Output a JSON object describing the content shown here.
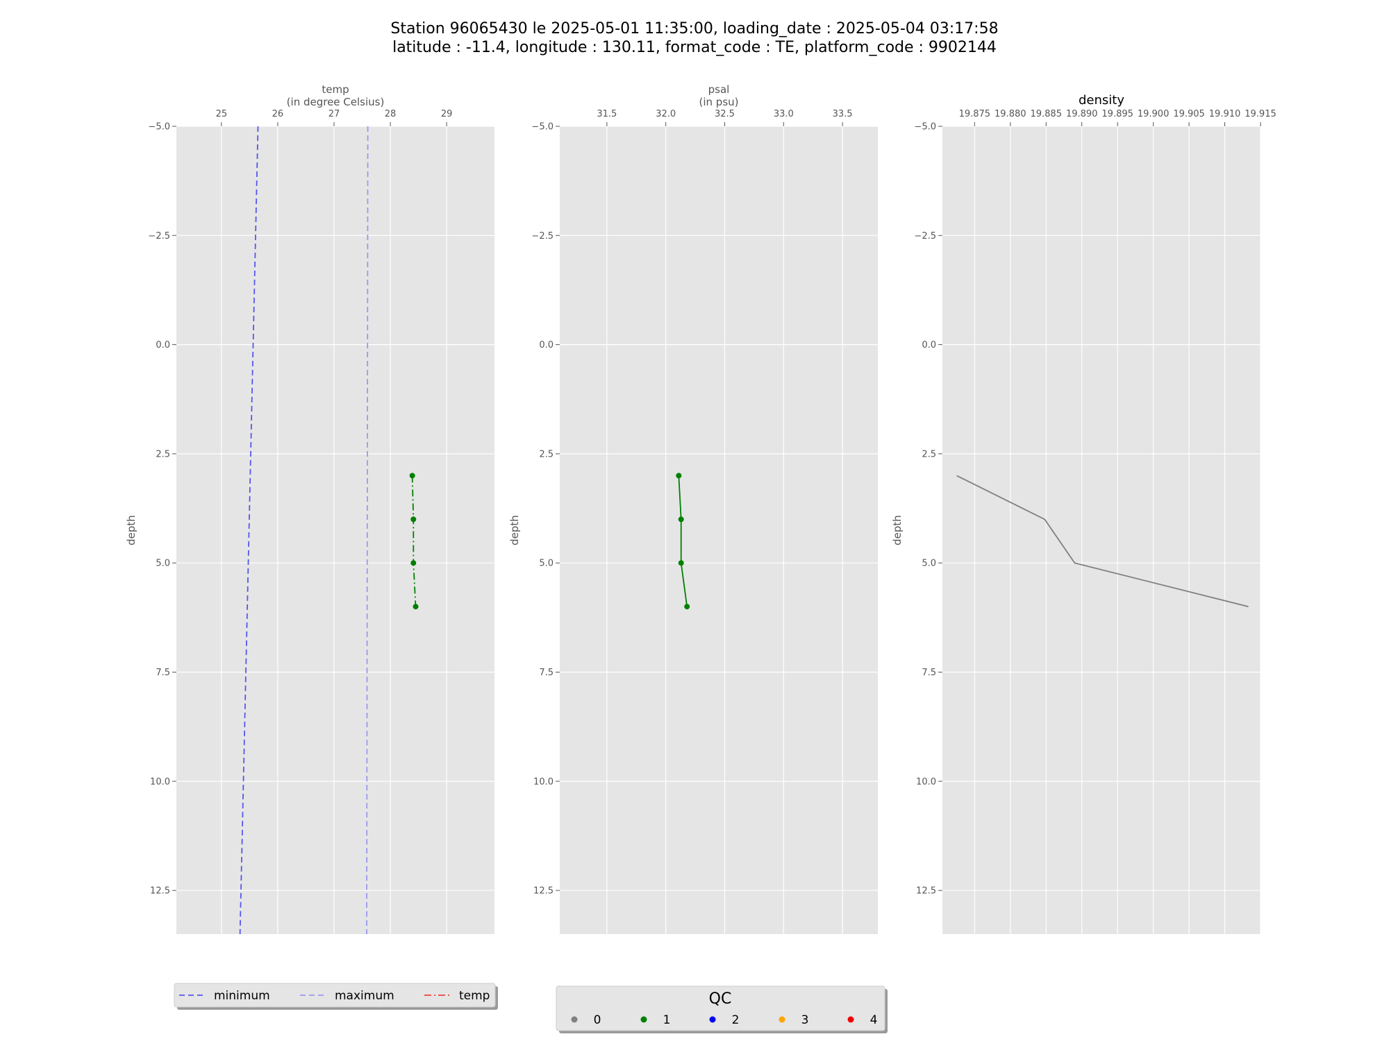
{
  "chart_data": {
    "title_line1": "Station 96065430 le 2025-05-01 11:35:00, loading_date : 2025-05-04 03:17:58",
    "title_line2": "latitude : -11.4, longitude : 130.11, format_code : TE, platform_code : 9902144",
    "type": "line",
    "y_axis": {
      "label": "depth",
      "lim": [
        13.5,
        -5.0
      ],
      "inverted": true,
      "ticks": [
        "−5.0",
        "−2.5",
        "0.0",
        "2.5",
        "5.0",
        "7.5",
        "10.0",
        "12.5"
      ],
      "tick_values": [
        -5.0,
        -2.5,
        0.0,
        2.5,
        5.0,
        7.5,
        10.0,
        12.5
      ]
    },
    "panels": [
      {
        "name": "temp",
        "xlabel_line1": "temp",
        "xlabel_line2": "(in degree Celsius)",
        "xlim": [
          24.2,
          29.85
        ],
        "xticks": [
          25,
          26,
          27,
          28,
          29
        ],
        "xtick_labels": [
          "25",
          "26",
          "27",
          "28",
          "29"
        ],
        "grid": true,
        "series": [
          {
            "name": "minimum",
            "color": "#5555ee",
            "dash": "8,5",
            "x": [
              25.65,
              25.33
            ],
            "y": [
              -5.0,
              13.5
            ]
          },
          {
            "name": "maximum",
            "color": "#9999ee",
            "dash": "8,5",
            "x": [
              27.6,
              27.58
            ],
            "y": [
              -5.0,
              13.5
            ]
          },
          {
            "name": "temp",
            "color": "#008000",
            "dash": "10,4,2,4",
            "markers": true,
            "x": [
              28.39,
              28.41,
              28.41,
              28.45
            ],
            "y": [
              3.0,
              4.0,
              5.0,
              6.0
            ]
          }
        ]
      },
      {
        "name": "psal",
        "xlabel_line1": "psal",
        "xlabel_line2": "(in psu)",
        "xlim": [
          31.1,
          33.8
        ],
        "xticks": [
          31.5,
          32.0,
          32.5,
          33.0,
          33.5
        ],
        "xtick_labels": [
          "31.5",
          "32.0",
          "32.5",
          "33.0",
          "33.5"
        ],
        "grid": true,
        "series": [
          {
            "name": "psal",
            "color": "#008000",
            "dash": "",
            "markers": true,
            "x": [
              32.11,
              32.13,
              32.13,
              32.18
            ],
            "y": [
              3.0,
              4.0,
              5.0,
              6.0
            ]
          }
        ]
      },
      {
        "name": "density",
        "title": "density",
        "xlim": [
          19.8705,
          19.915
        ],
        "xticks": [
          19.875,
          19.88,
          19.885,
          19.89,
          19.895,
          19.9,
          19.905,
          19.91,
          19.915
        ],
        "xtick_labels": [
          "19.875",
          "19.880",
          "19.885",
          "19.890",
          "19.895",
          "19.900",
          "19.905",
          "19.910",
          "19.915"
        ],
        "grid": true,
        "series": [
          {
            "name": "density",
            "color": "#7f7f7f",
            "dash": "",
            "markers": false,
            "x": [
              19.8725,
              19.8848,
              19.889,
              19.9133
            ],
            "y": [
              3.0,
              4.0,
              5.0,
              6.0
            ]
          }
        ]
      }
    ],
    "legend_lines": {
      "placement": "bottom-left",
      "entries": [
        {
          "label": "minimum",
          "color": "#5555ee",
          "dash": "8,5"
        },
        {
          "label": "maximum",
          "color": "#9999ee",
          "dash": "8,5"
        },
        {
          "label": "temp",
          "color": "#e8473a",
          "dash": "10,4,2,4"
        }
      ]
    },
    "legend_qc": {
      "placement": "bottom-center",
      "title": "QC",
      "entries": [
        {
          "label": "0",
          "color": "#808080"
        },
        {
          "label": "1",
          "color": "#008000"
        },
        {
          "label": "2",
          "color": "#0000ee"
        },
        {
          "label": "3",
          "color": "#ffa500"
        },
        {
          "label": "4",
          "color": "#ee0000"
        }
      ]
    },
    "colors": {
      "panel_background": "#e5e5e5",
      "grid": "#ffffff"
    }
  }
}
